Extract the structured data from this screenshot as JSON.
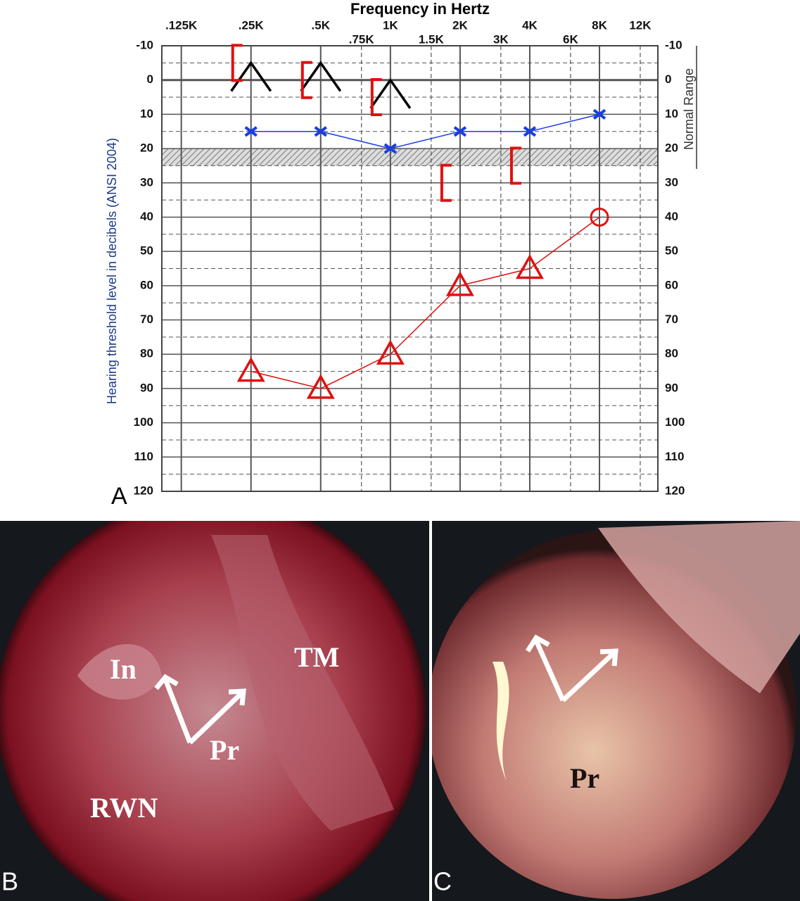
{
  "chart_data": {
    "type": "audiogram",
    "title": "Frequency in Hertz",
    "y_label": "Hearing threshold level in decibels (ANSI 2004)",
    "normal_range_label": "Normal Range",
    "normal_range": [
      20,
      25
    ],
    "log_x": true,
    "xlim": [
      103,
      14300
    ],
    "xticks": [
      {
        "value": 125,
        "label": ".125K"
      },
      {
        "value": 250,
        "label": ".25K"
      },
      {
        "value": 500,
        "label": ".5K"
      },
      {
        "value": 750,
        "label": ".75K"
      },
      {
        "value": 1000,
        "label": "1K"
      },
      {
        "value": 1500,
        "label": "1.5K"
      },
      {
        "value": 2000,
        "label": "2K"
      },
      {
        "value": 3000,
        "label": "3K"
      },
      {
        "value": 4000,
        "label": "4K"
      },
      {
        "value": 6000,
        "label": "6K"
      },
      {
        "value": 8000,
        "label": "8K"
      },
      {
        "value": 12000,
        "label": "12K"
      }
    ],
    "ylim": [
      -10,
      120
    ],
    "yticks": [
      -10,
      0,
      10,
      20,
      30,
      40,
      50,
      60,
      70,
      80,
      90,
      100,
      110,
      120
    ],
    "grid": true,
    "x": [
      250,
      500,
      1000,
      2000,
      4000,
      8000
    ],
    "series": [
      {
        "color": "#e01010",
        "marker": [
          "triangle",
          "triangle",
          "triangle",
          "triangle",
          "triangle",
          "circle"
        ],
        "line": true,
        "values": [
          85,
          90,
          80,
          60,
          55,
          40
        ]
      },
      {
        "color": "#1a3ee0",
        "marker": "cross",
        "line": true,
        "values": [
          15,
          15,
          20,
          15,
          15,
          10
        ]
      },
      {
        "color": "#000000",
        "marker": "caret",
        "line": false,
        "values": [
          -5,
          -5,
          0,
          null,
          null,
          null
        ]
      },
      {
        "color": "#e01010",
        "marker": "bracket",
        "line": false,
        "values": [
          -5,
          0,
          5,
          30,
          25,
          null
        ]
      }
    ]
  },
  "panel_a": "A",
  "photos": [
    {
      "panel": "B",
      "labels": [
        "In",
        "TM",
        "Pr",
        "RWN"
      ]
    },
    {
      "panel": "C",
      "labels": [
        "Pr"
      ]
    }
  ]
}
